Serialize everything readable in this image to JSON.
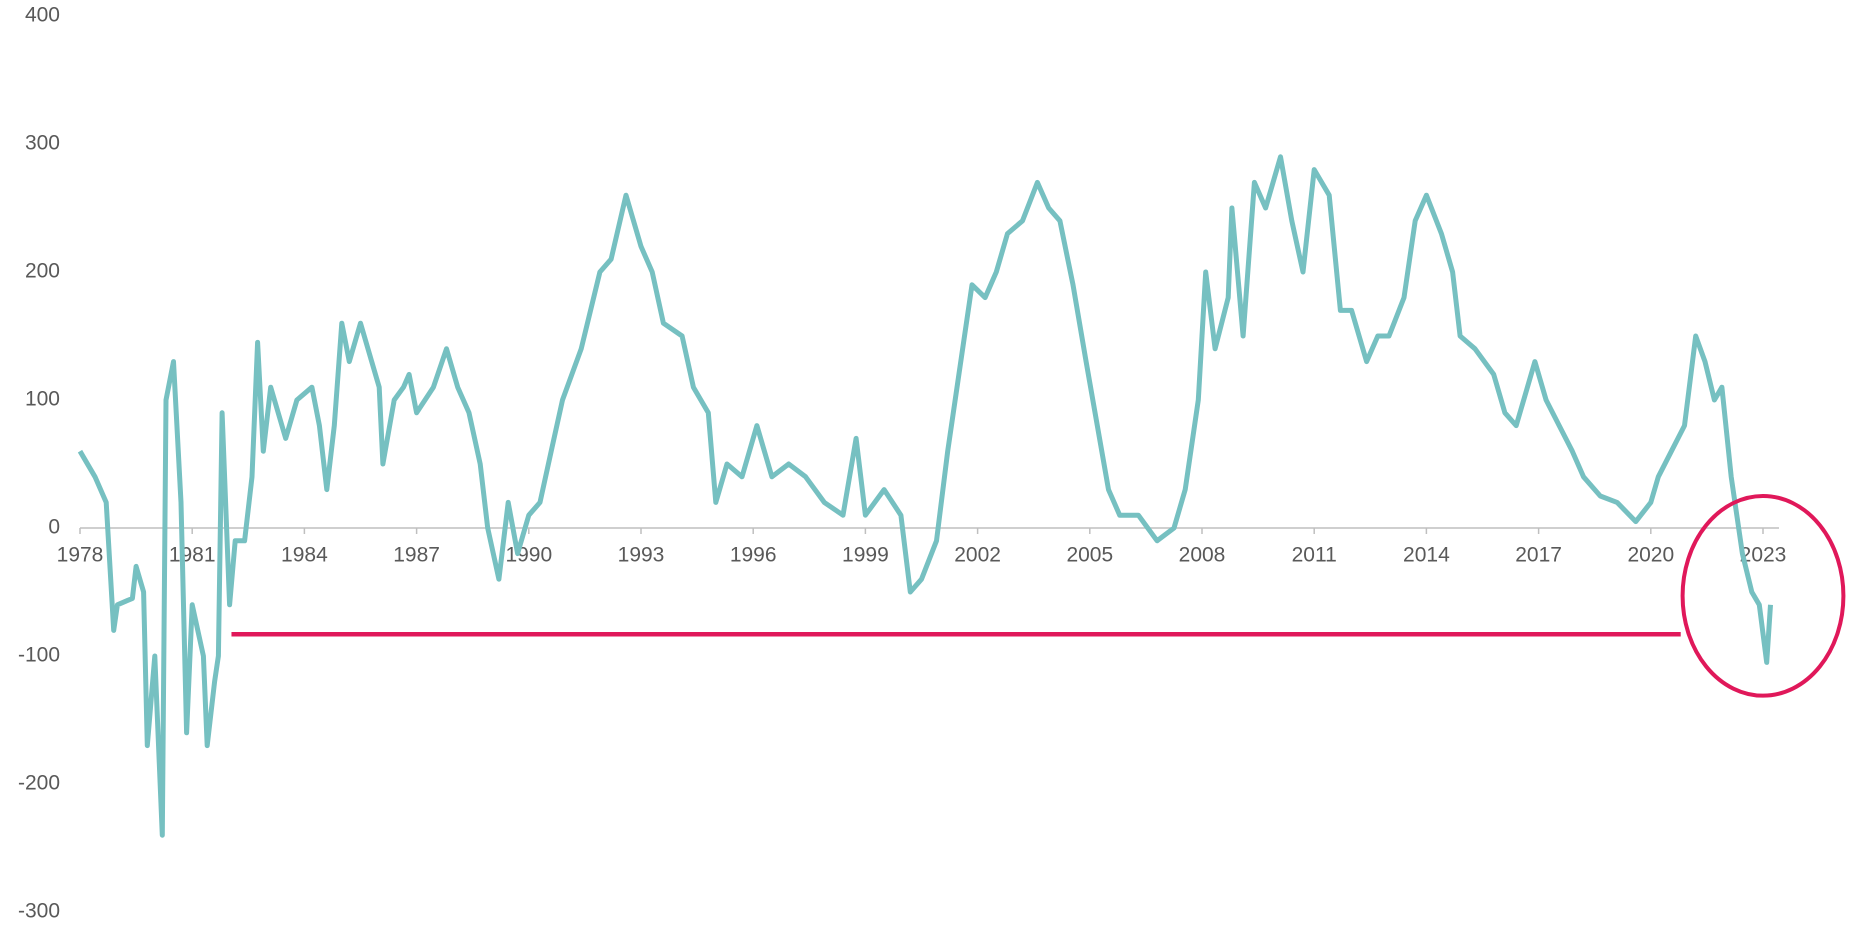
{
  "chart_data": {
    "type": "line",
    "x": [
      1978.0,
      1978.4,
      1978.7,
      1978.9,
      1979.0,
      1979.4,
      1979.5,
      1979.7,
      1979.8,
      1980.0,
      1980.2,
      1980.3,
      1980.5,
      1980.7,
      1980.85,
      1981.0,
      1981.3,
      1981.4,
      1981.6,
      1981.7,
      1981.8,
      1982.0,
      1982.15,
      1982.4,
      1982.6,
      1982.75,
      1982.9,
      1983.1,
      1983.3,
      1983.5,
      1983.8,
      1984.2,
      1984.4,
      1984.6,
      1984.8,
      1985.0,
      1985.2,
      1985.5,
      1985.8,
      1986.0,
      1986.1,
      1986.4,
      1986.65,
      1986.8,
      1987.0,
      1987.45,
      1987.8,
      1988.1,
      1988.4,
      1988.7,
      1988.9,
      1989.2,
      1989.45,
      1989.7,
      1990.0,
      1990.3,
      1990.6,
      1990.9,
      1991.4,
      1991.9,
      1992.2,
      1992.6,
      1993.0,
      1993.3,
      1993.6,
      1994.1,
      1994.4,
      1994.8,
      1995.0,
      1995.3,
      1995.7,
      1996.1,
      1996.5,
      1996.95,
      1997.4,
      1997.9,
      1998.4,
      1998.75,
      1999.0,
      1999.5,
      1999.95,
      2000.2,
      2000.5,
      2000.9,
      2001.2,
      2001.5,
      2001.85,
      2002.2,
      2002.5,
      2002.8,
      2003.2,
      2003.6,
      2003.9,
      2004.2,
      2004.55,
      2004.9,
      2005.2,
      2005.5,
      2005.8,
      2006.3,
      2006.8,
      2007.25,
      2007.55,
      2007.9,
      2008.1,
      2008.35,
      2008.7,
      2008.8,
      2009.1,
      2009.4,
      2009.7,
      2010.1,
      2010.4,
      2010.7,
      2011.0,
      2011.4,
      2011.7,
      2012.0,
      2012.4,
      2012.7,
      2013.0,
      2013.4,
      2013.7,
      2014.0,
      2014.4,
      2014.7,
      2014.9,
      2015.3,
      2015.8,
      2016.1,
      2016.4,
      2016.9,
      2017.2,
      2017.55,
      2017.9,
      2018.2,
      2018.65,
      2019.1,
      2019.6,
      2020.0,
      2020.2,
      2020.55,
      2020.9,
      2021.2,
      2021.45,
      2021.7,
      2021.9,
      2022.15,
      2022.3,
      2022.45,
      2022.7,
      2022.9,
      2023.1,
      2023.2
    ],
    "series": [
      {
        "color": "#76c0c1",
        "values": [
          60,
          40,
          20,
          -80,
          -60,
          -55,
          -30,
          -50,
          -170,
          -100,
          -240,
          100,
          130,
          20,
          -160,
          -60,
          -100,
          -170,
          -120,
          -100,
          90,
          -60,
          -10,
          -10,
          40,
          145,
          60,
          110,
          90,
          70,
          100,
          110,
          80,
          30,
          80,
          160,
          130,
          160,
          130,
          110,
          50,
          100,
          110,
          120,
          90,
          110,
          140,
          110,
          90,
          50,
          0,
          -40,
          20,
          -20,
          10,
          20,
          60,
          100,
          140,
          200,
          210,
          260,
          220,
          200,
          160,
          150,
          110,
          90,
          20,
          50,
          40,
          80,
          40,
          50,
          40,
          20,
          10,
          70,
          10,
          30,
          10,
          -50,
          -40,
          -10,
          60,
          120,
          190,
          180,
          200,
          230,
          240,
          270,
          250,
          240,
          190,
          130,
          80,
          30,
          10,
          10,
          -10,
          0,
          30,
          100,
          200,
          140,
          180,
          250,
          150,
          270,
          250,
          290,
          240,
          200,
          280,
          260,
          170,
          170,
          130,
          150,
          150,
          180,
          240,
          260,
          230,
          200,
          150,
          140,
          120,
          90,
          80,
          130,
          100,
          80,
          60,
          40,
          25,
          20,
          5,
          20,
          40,
          60,
          80,
          150,
          130,
          100,
          110,
          40,
          10,
          -20,
          -50,
          -60,
          -105,
          -60
        ]
      }
    ],
    "xlim": [
      1978,
      2023
    ],
    "xticks": [
      1978,
      1981,
      1984,
      1987,
      1990,
      1993,
      1996,
      1999,
      2002,
      2005,
      2008,
      2011,
      2014,
      2017,
      2020,
      2023
    ],
    "ylim": [
      -300,
      400
    ],
    "yticks": [
      -300,
      -200,
      -100,
      0,
      100,
      200,
      300,
      400
    ],
    "reference_line": {
      "y": -83,
      "x": [
        1982.05,
        2020.8
      ],
      "color": "#e0185a"
    },
    "highlight": {
      "xlim": [
        2020.85,
        2025.15
      ],
      "ylim": [
        -131,
        25
      ],
      "color": "#e0185a"
    }
  }
}
